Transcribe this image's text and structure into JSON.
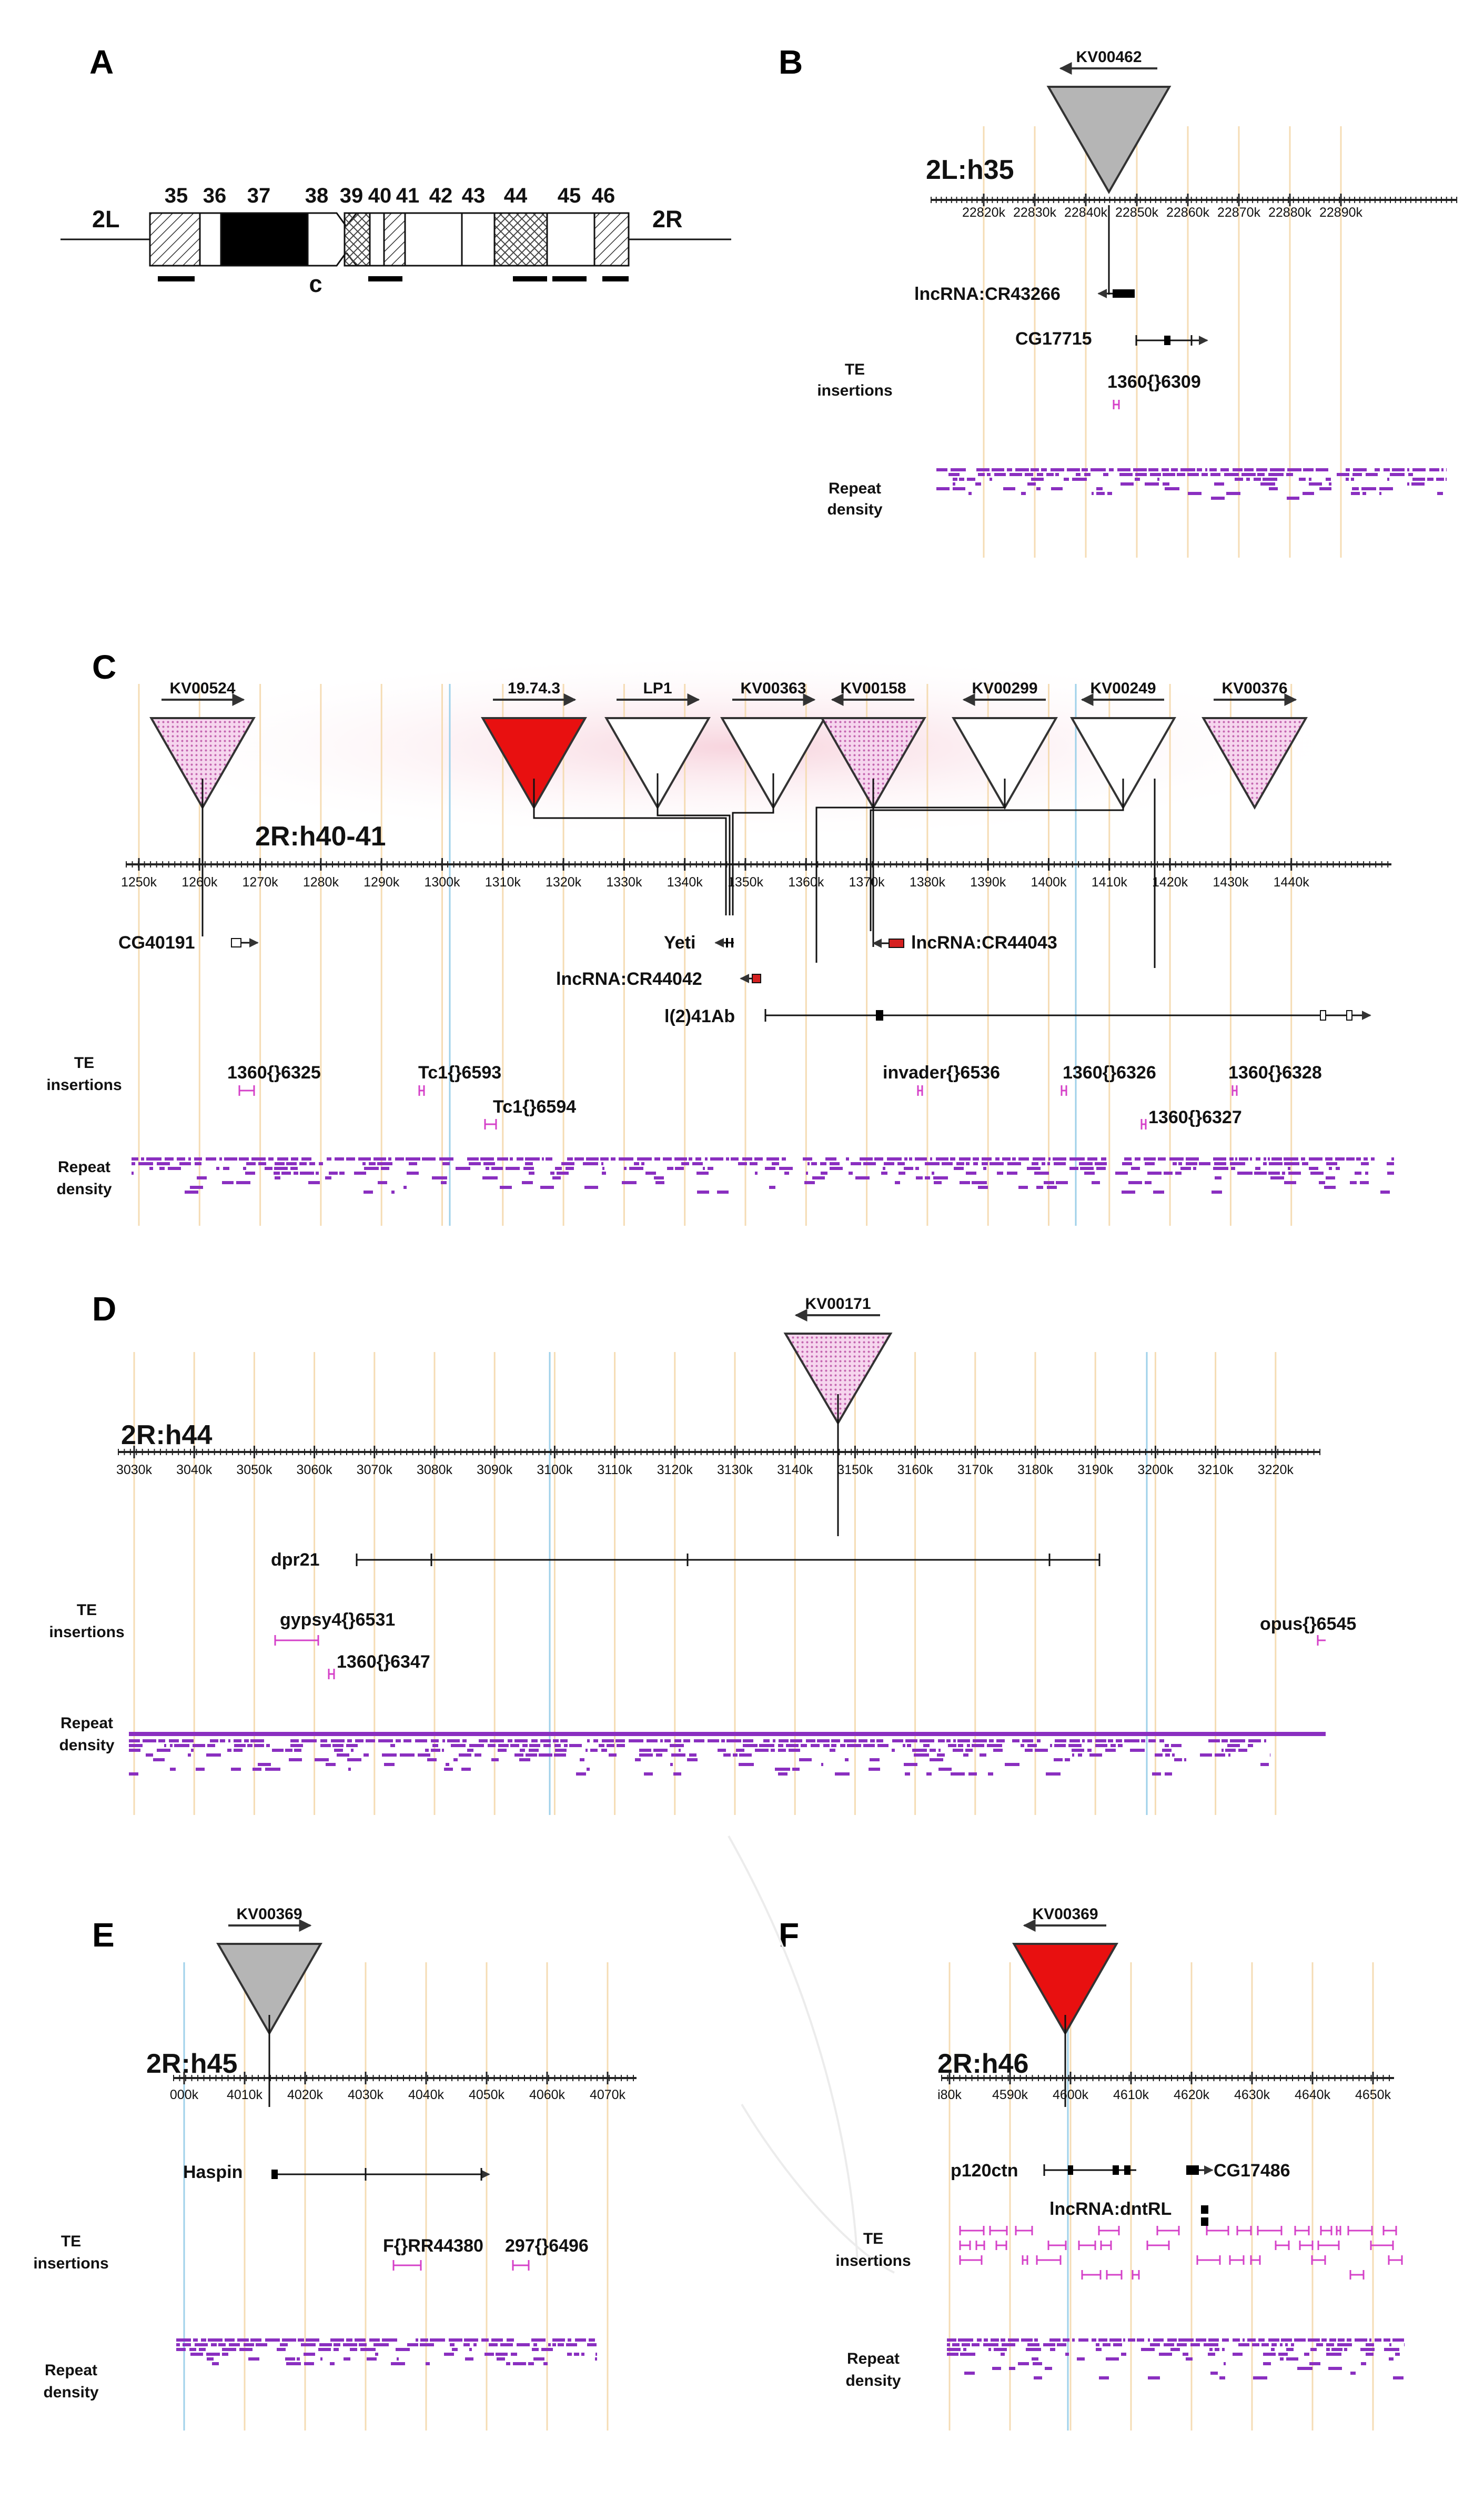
{
  "colors": {
    "repeat": "#8a2fc0",
    "te": "#d540c8",
    "grid_orange": "#f5dcb4",
    "grid_blue": "#9fd1ea",
    "gray": "#b5b5b5",
    "red": "#e81010",
    "pink_fill": "#f3c7e6",
    "gene_red": "#d52020"
  },
  "row_labels": {
    "te_line1": "TE",
    "te_line2": "insertions",
    "repeat_line1": "Repeat",
    "repeat_line2": "density"
  },
  "panelA": {
    "label": "A",
    "left_arm": "2L",
    "right_arm": "2R",
    "bands": [
      "35",
      "36",
      "37",
      "38",
      "39",
      "40",
      "41",
      "42",
      "43",
      "44",
      "45",
      "46"
    ],
    "centromere": "c"
  },
  "panelB": {
    "label": "B",
    "title": "2L:h35",
    "ticks": [
      "22820k",
      "22830k",
      "22840k",
      "22850k",
      "22860k",
      "22870k",
      "22880k",
      "22890k"
    ],
    "insertions": [
      {
        "name": "KV00462",
        "color": "gray",
        "pattern": "solid",
        "direction": "left"
      }
    ],
    "genes": [
      "lncRNA:CR43266",
      "CG17715"
    ],
    "te": [
      "1360{}6309"
    ]
  },
  "panelC": {
    "label": "C",
    "title": "2R:h40-41",
    "ticks": [
      "1250k",
      "1260k",
      "1270k",
      "1280k",
      "1290k",
      "1300k",
      "1310k",
      "1320k",
      "1330k",
      "1340k",
      "1350k",
      "1360k",
      "1370k",
      "1380k",
      "1390k",
      "1400k",
      "1410k",
      "1420k",
      "1430k",
      "1440k"
    ],
    "insertions": [
      {
        "name": "KV00524",
        "color": "pink",
        "pattern": "dotted",
        "direction": "right"
      },
      {
        "name": "19.74.3",
        "color": "red",
        "pattern": "solid",
        "direction": "right"
      },
      {
        "name": "LP1",
        "color": "white",
        "pattern": "none",
        "direction": "right"
      },
      {
        "name": "KV00363",
        "color": "white",
        "pattern": "none",
        "direction": "right"
      },
      {
        "name": "KV00158",
        "color": "pink",
        "pattern": "dotted",
        "direction": "left"
      },
      {
        "name": "KV00299",
        "color": "white",
        "pattern": "none",
        "direction": "left"
      },
      {
        "name": "KV00249",
        "color": "white",
        "pattern": "none",
        "direction": "left"
      },
      {
        "name": "KV00376",
        "color": "pink",
        "pattern": "dotted",
        "direction": "right"
      }
    ],
    "genes": [
      "CG40191",
      "Yeti",
      "lncRNA:CR44042",
      "lncRNA:CR44043",
      "l(2)41Ab"
    ],
    "te": [
      "1360{}6325",
      "Tc1{}6593",
      "Tc1{}6594",
      "invader{}6536",
      "1360{}6326",
      "1360{}6327",
      "1360{}6328"
    ]
  },
  "panelD": {
    "label": "D",
    "title": "2R:h44",
    "ticks": [
      "3030k",
      "3040k",
      "3050k",
      "3060k",
      "3070k",
      "3080k",
      "3090k",
      "3100k",
      "3110k",
      "3120k",
      "3130k",
      "3140k",
      "3150k",
      "3160k",
      "3170k",
      "3180k",
      "3190k",
      "3200k",
      "3210k",
      "3220k"
    ],
    "insertions": [
      {
        "name": "KV00171",
        "color": "pink",
        "pattern": "dotted",
        "direction": "left"
      }
    ],
    "genes": [
      "dpr21"
    ],
    "te": [
      "gypsy4{}6531",
      "1360{}6347",
      "opus{}6545"
    ]
  },
  "panelE": {
    "label": "E",
    "title": "2R:h45",
    "ticks": [
      "000k",
      "4010k",
      "4020k",
      "4030k",
      "4040k",
      "4050k",
      "4060k",
      "4070k"
    ],
    "insertions": [
      {
        "name": "KV00369",
        "color": "gray",
        "pattern": "solid",
        "direction": "right"
      }
    ],
    "genes": [
      "Haspin"
    ],
    "te": [
      "F{}RR44380",
      "297{}6496"
    ]
  },
  "panelF": {
    "label": "F",
    "title": "2R:h46",
    "ticks": [
      "i80k",
      "4590k",
      "4600k",
      "4610k",
      "4620k",
      "4630k",
      "4640k",
      "4650k"
    ],
    "insertions": [
      {
        "name": "KV00369",
        "color": "red",
        "pattern": "solid",
        "direction": "left"
      }
    ],
    "genes": [
      "p120ctn",
      "CG17486",
      "lncRNA:dntRL"
    ]
  }
}
